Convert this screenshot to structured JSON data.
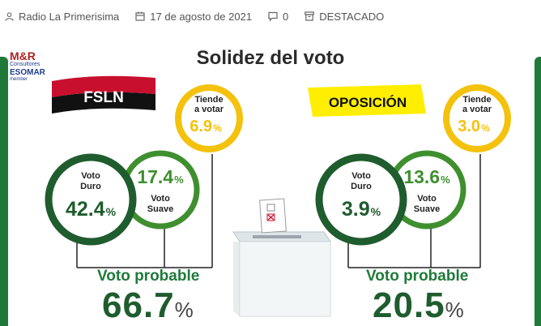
{
  "meta": {
    "author": "Radio La Primerisima",
    "date": "17 de agosto de 2021",
    "comments": "0",
    "category": "DESTACADO",
    "icons": [
      "person-icon",
      "calendar-icon",
      "comment-icon",
      "archive-icon"
    ]
  },
  "logo": {
    "name": "M&R",
    "subtitle": "Consultores",
    "esomar": "ESOMAR",
    "member": "member"
  },
  "title": "Solidez del voto",
  "pct_symbol": "%",
  "fsln": {
    "label": "FSLN",
    "duro": {
      "label1": "Voto",
      "label2": "Duro",
      "value": "42.4"
    },
    "suave": {
      "label1": "Voto",
      "label2": "Suave",
      "value": "17.4"
    },
    "tiende": {
      "label1": "Tiende",
      "label2": "a votar",
      "value": "6.9"
    },
    "probable_label": "Voto probable",
    "probable_value": "66.7"
  },
  "oposicion": {
    "label": "OPOSICIÓN",
    "duro": {
      "label1": "Voto",
      "label2": "Duro",
      "value": "3.9"
    },
    "suave": {
      "label1": "Voto",
      "label2": "Suave",
      "value": "13.6"
    },
    "tiende": {
      "label1": "Tiende",
      "label2": "a votar",
      "value": "3.0"
    },
    "probable_label": "Voto probable",
    "probable_value": "20.5"
  },
  "colors": {
    "dark_green": "#1f5c2e",
    "mid_green": "#3f8f2f",
    "yellow": "#f4c20d",
    "fsln_red": "#c8102e",
    "fsln_black": "#111111",
    "opp_yellow": "#ffee00"
  }
}
